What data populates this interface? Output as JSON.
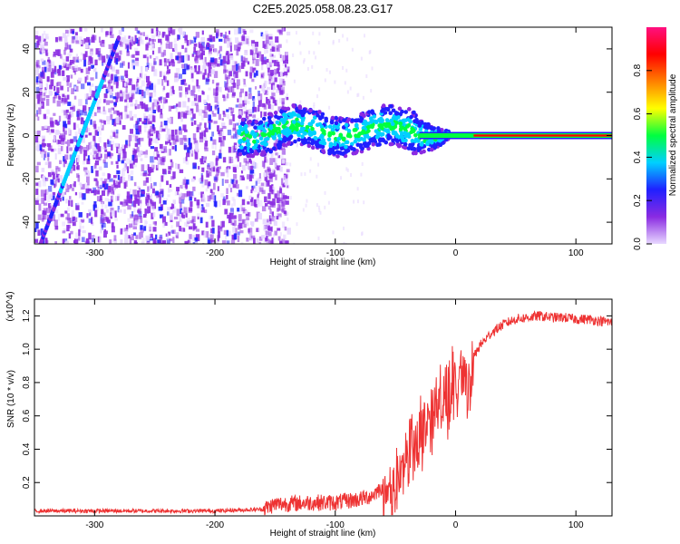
{
  "title": "C2E5.2025.058.08.23.G17",
  "colors": {
    "trace": "#ee3333",
    "axis": "#000000",
    "background": "#ffffff"
  },
  "chart_data": [
    {
      "type": "heatmap",
      "title": "",
      "xlabel": "Height of straight line (km)",
      "ylabel": "Frequency (Hz)",
      "xlim": [
        -350,
        130
      ],
      "ylim": [
        -50,
        50
      ],
      "x_ticks": [
        -300,
        -200,
        -100,
        0,
        100
      ],
      "y_ticks": [
        -40,
        -20,
        0,
        20,
        40
      ],
      "colorbar": {
        "label": "Normalized spectral amplitude",
        "range": [
          0,
          1
        ],
        "ticks": [
          "0.0",
          "0.2",
          "0.4",
          "0.6",
          "0.8"
        ],
        "colormap": [
          "#e8d8ff",
          "#8a2be2",
          "#2020ff",
          "#00d0ff",
          "#00ff40",
          "#ffff00",
          "#ff8000",
          "#ff0000",
          "#ff1080"
        ]
      },
      "features": {
        "noise_region_x": [
          -350,
          -160
        ],
        "doppler_streak": {
          "x": [
            -345,
            -280
          ],
          "freq": [
            -50,
            45
          ]
        },
        "carrier_line": {
          "x": [
            -175,
            130
          ],
          "freq_start": 2,
          "freq_end": 0
        }
      }
    },
    {
      "type": "line",
      "title": "",
      "xlabel": "Height of straight line (km)",
      "ylabel": "SNR (10 * v/v)",
      "scale_note": "(x10^4)",
      "xlim": [
        -350,
        130
      ],
      "ylim": [
        0,
        1.3
      ],
      "x_ticks": [
        -300,
        -200,
        -100,
        0,
        100
      ],
      "y_ticks": [
        0.2,
        0.4,
        0.6,
        0.8,
        1.0,
        1.2
      ],
      "series": [
        {
          "name": "SNR",
          "x": [
            -350,
            -300,
            -250,
            -200,
            -160,
            -150,
            -120,
            -100,
            -80,
            -70,
            -60,
            -50,
            -45,
            -40,
            -35,
            -30,
            -25,
            -20,
            -15,
            -10,
            -5,
            0,
            5,
            10,
            15,
            20,
            30,
            40,
            50,
            60,
            70,
            80,
            90,
            100,
            110,
            120,
            130
          ],
          "y": [
            0.03,
            0.03,
            0.03,
            0.03,
            0.04,
            0.07,
            0.08,
            0.08,
            0.1,
            0.12,
            0.18,
            0.28,
            0.38,
            0.45,
            0.52,
            0.55,
            0.62,
            0.72,
            0.75,
            0.78,
            0.82,
            0.9,
            0.95,
            0.85,
            0.95,
            1.02,
            1.1,
            1.15,
            1.18,
            1.19,
            1.2,
            1.19,
            1.19,
            1.18,
            1.18,
            1.17,
            1.16
          ]
        }
      ]
    }
  ]
}
